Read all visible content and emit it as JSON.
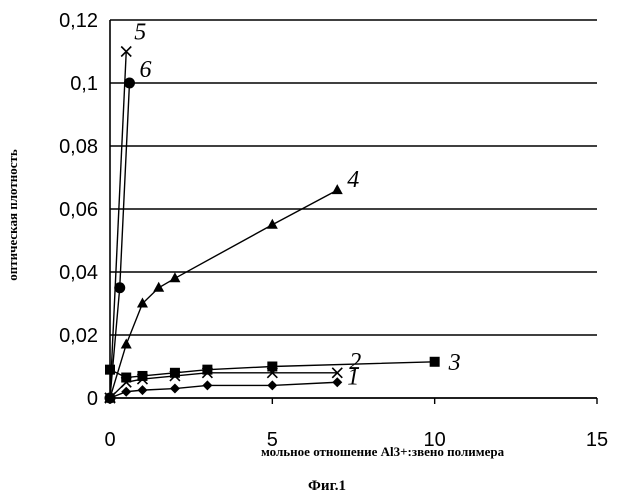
{
  "caption": "Фиг.1",
  "chart_data": {
    "type": "line",
    "xlabel": "мольное отношение Al3+:звено полимера",
    "ylabel": "оптическая плотность",
    "xlim": [
      0,
      15
    ],
    "ylim": [
      0,
      0.12
    ],
    "x_ticks": [
      "0",
      "5",
      "10",
      "15"
    ],
    "y_ticks": [
      "0",
      "0,02",
      "0,04",
      "0,06",
      "0,08",
      "0,1",
      "0,12"
    ],
    "grid": "horizontal",
    "series": [
      {
        "name": "1",
        "marker": "diamond",
        "points": [
          [
            0,
            0
          ],
          [
            0.5,
            0.002
          ],
          [
            1,
            0.0025
          ],
          [
            2,
            0.003
          ],
          [
            3,
            0.004
          ],
          [
            5,
            0.004
          ],
          [
            7,
            0.005
          ]
        ]
      },
      {
        "name": "2",
        "marker": "x",
        "points": [
          [
            0,
            0
          ],
          [
            0.5,
            0.005
          ],
          [
            1,
            0.006
          ],
          [
            2,
            0.007
          ],
          [
            3,
            0.008
          ],
          [
            5,
            0.008
          ],
          [
            7,
            0.008
          ]
        ]
      },
      {
        "name": "3",
        "marker": "square",
        "points": [
          [
            0,
            0.009
          ],
          [
            0.5,
            0.0065
          ],
          [
            1,
            0.007
          ],
          [
            2,
            0.008
          ],
          [
            3,
            0.009
          ],
          [
            5,
            0.01
          ],
          [
            10,
            0.0115
          ]
        ]
      },
      {
        "name": "4",
        "marker": "triangle",
        "points": [
          [
            0,
            0
          ],
          [
            0.5,
            0.017
          ],
          [
            1,
            0.03
          ],
          [
            1.5,
            0.035
          ],
          [
            2,
            0.038
          ],
          [
            5,
            0.055
          ],
          [
            7,
            0.066
          ]
        ]
      },
      {
        "name": "5",
        "marker": "x",
        "points": [
          [
            0,
            0
          ],
          [
            0.5,
            0.11
          ]
        ]
      },
      {
        "name": "6",
        "marker": "circle",
        "points": [
          [
            0,
            0
          ],
          [
            0.3,
            0.035
          ],
          [
            0.6,
            0.1
          ]
        ]
      }
    ]
  }
}
